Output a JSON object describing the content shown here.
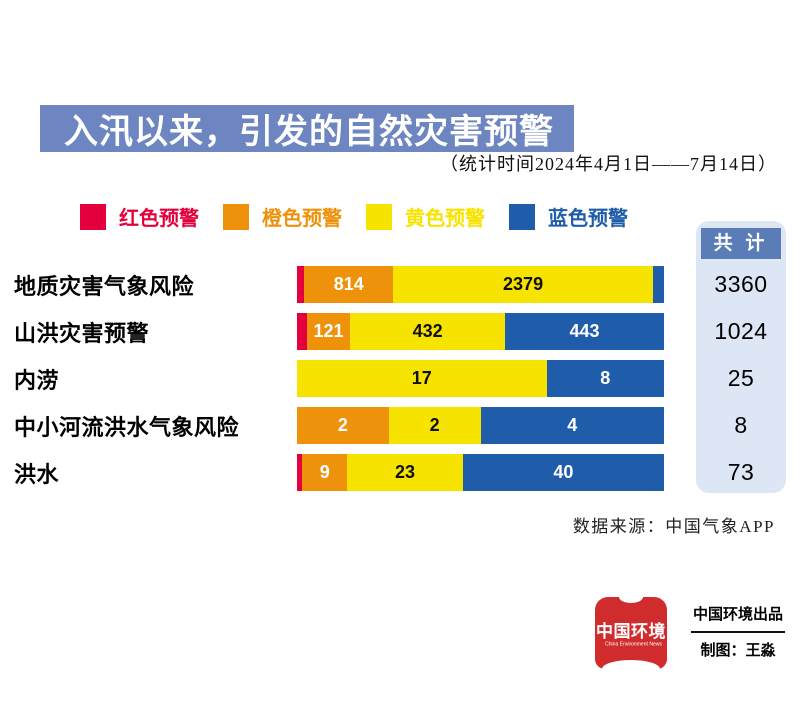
{
  "header": {
    "title": "入汛以来，引发的自然灾害预警",
    "subtitle": "（统计时间2024年4月1日——7月14日）",
    "band_color": "#6d86c1"
  },
  "legend": {
    "items": [
      {
        "label": "红色预警",
        "color": "#e4003c"
      },
      {
        "label": "橙色预警",
        "color": "#ef920b"
      },
      {
        "label": "黄色预警",
        "color": "#f7e300"
      },
      {
        "label": "蓝色预警",
        "color": "#1f5ca9"
      }
    ]
  },
  "totals_panel": {
    "header_label": "共 计",
    "header_bg": "#5a7cb7",
    "panel_bg": "#dce6f4"
  },
  "chart_data": {
    "type": "bar",
    "orientation": "horizontal",
    "stacked": true,
    "note": "each row bar spans full track width; segments proportional within row; tiny red/blue slivers unlabeled",
    "series_colors": {
      "红色预警": "#e4003c",
      "橙色预警": "#ef920b",
      "黄色预警": "#f7e300",
      "蓝色预警": "#1f5ca9"
    },
    "categories": [
      "地质灾害气象风险",
      "山洪灾害预警",
      "内涝",
      "中小河流洪水气象风险",
      "洪水"
    ],
    "totals": [
      3360,
      1024,
      25,
      8,
      73
    ],
    "rows": [
      {
        "category": "地质灾害气象风险",
        "total": 3360,
        "segments": [
          {
            "series": "红色预警",
            "label": "",
            "pct": 2.0
          },
          {
            "series": "橙色预警",
            "label": "814",
            "pct": 24.2
          },
          {
            "series": "黄色预警",
            "label": "2379",
            "pct": 70.8
          },
          {
            "series": "蓝色预警",
            "label": "",
            "pct": 3.0
          }
        ]
      },
      {
        "category": "山洪灾害预警",
        "total": 1024,
        "segments": [
          {
            "series": "红色预警",
            "label": "",
            "pct": 2.7
          },
          {
            "series": "橙色预警",
            "label": "121",
            "pct": 11.8
          },
          {
            "series": "黄色预警",
            "label": "432",
            "pct": 42.2
          },
          {
            "series": "蓝色预警",
            "label": "443",
            "pct": 43.3
          }
        ]
      },
      {
        "category": "内涝",
        "total": 25,
        "segments": [
          {
            "series": "黄色预警",
            "label": "17",
            "pct": 68.0
          },
          {
            "series": "蓝色预警",
            "label": "8",
            "pct": 32.0
          }
        ]
      },
      {
        "category": "中小河流洪水气象风险",
        "total": 8,
        "segments": [
          {
            "series": "橙色预警",
            "label": "2",
            "pct": 25.0
          },
          {
            "series": "黄色预警",
            "label": "2",
            "pct": 25.0
          },
          {
            "series": "蓝色预警",
            "label": "4",
            "pct": 50.0
          }
        ]
      },
      {
        "category": "洪水",
        "total": 73,
        "segments": [
          {
            "series": "红色预警",
            "label": "",
            "pct": 1.4
          },
          {
            "series": "橙色预警",
            "label": "9",
            "pct": 12.3
          },
          {
            "series": "黄色预警",
            "label": "23",
            "pct": 31.5
          },
          {
            "series": "蓝色预警",
            "label": "40",
            "pct": 54.8
          }
        ]
      }
    ]
  },
  "footer": {
    "source": "数据来源：中国气象APP",
    "logo": {
      "name": "中国环境",
      "subtext": "China Environment News",
      "color": "#d02c2d"
    },
    "credit_line1": "中国环境出品",
    "credit_line2": "制图：王淼"
  }
}
